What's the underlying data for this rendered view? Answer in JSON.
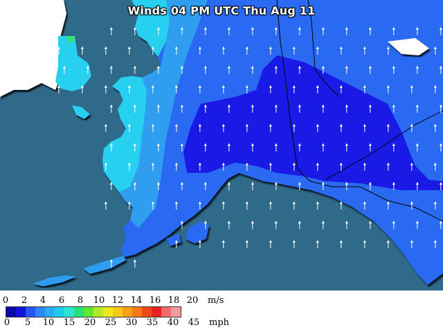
{
  "map": {
    "title": "Winds 04 PM UTC Thu Aug 11",
    "colors": {
      "ocean": "#2f6a8a",
      "land_dark": "#ffffff",
      "wind_deep": "#1a1ae6",
      "wind_mid": "#2b6af2",
      "wind_light": "#2f9df0",
      "wind_cyan": "#28d0f0"
    }
  },
  "legend": {
    "ms_labels": [
      "0",
      "2",
      "4",
      "6",
      "8",
      "10",
      "12",
      "14",
      "16",
      "18",
      "20"
    ],
    "ms_unit": "m/s",
    "mph_labels": [
      "0",
      "5",
      "10",
      "15",
      "20",
      "25",
      "30",
      "35",
      "40",
      "45"
    ],
    "mph_unit": "mph",
    "swatches": [
      "#0a0aa8",
      "#1414e0",
      "#2a55f5",
      "#2f86f6",
      "#25aef2",
      "#1ccde8",
      "#2de8d0",
      "#28e07a",
      "#5de830",
      "#b6e82a",
      "#f0e81c",
      "#f8c818",
      "#f8a018",
      "#f87818",
      "#f04818",
      "#e82020",
      "#f06a6a",
      "#f49a9a"
    ]
  }
}
